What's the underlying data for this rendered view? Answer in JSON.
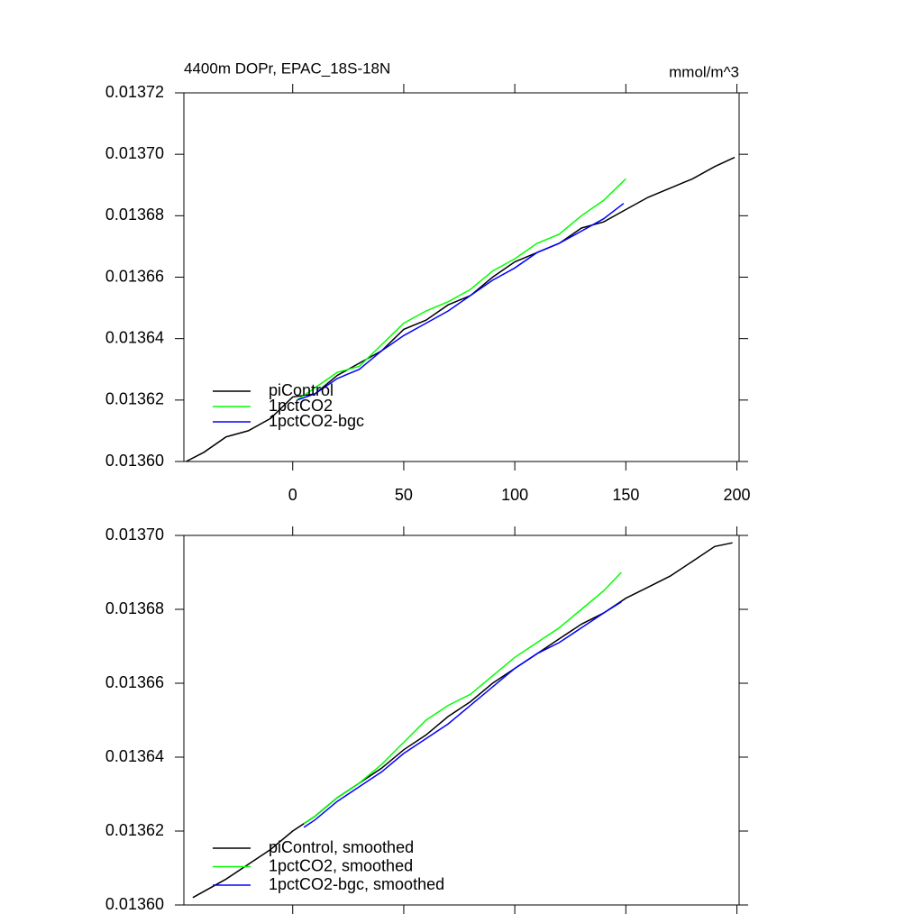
{
  "chart_data": [
    {
      "type": "line",
      "title": "4400m DOPr, EPAC_18S-18N",
      "unit_label": "mmol/m^3",
      "xlim": [
        -49,
        201
      ],
      "xticks": [
        0,
        50,
        100,
        150,
        200
      ],
      "xtick_labels": true,
      "ylim": [
        0.0136,
        0.01372
      ],
      "yticks": [
        {
          "value": 0.0136,
          "label": "0.01360"
        },
        0.01362,
        0.01364,
        0.01366,
        0.01368,
        {
          "value": 0.0137,
          "label": "0.01370"
        },
        0.01372
      ],
      "legend": "lower left",
      "series": [
        {
          "name": "piControl",
          "color": "#000000",
          "x": [
            -48,
            -40,
            -30,
            -20,
            -10,
            0,
            10,
            20,
            30,
            40,
            50,
            60,
            70,
            80,
            90,
            100,
            110,
            120,
            130,
            140,
            150,
            160,
            170,
            180,
            190,
            199
          ],
          "values": [
            0.0136,
            0.013603,
            0.013608,
            0.01361,
            0.013614,
            0.013621,
            0.013622,
            0.013628,
            0.013632,
            0.013636,
            0.013643,
            0.013646,
            0.013651,
            0.013654,
            0.01366,
            0.013665,
            0.013668,
            0.013671,
            0.013676,
            0.013678,
            0.013682,
            0.013686,
            0.013689,
            0.013692,
            0.013696,
            0.013699
          ]
        },
        {
          "name": "1pctCO2",
          "color": "#00ff00",
          "x": [
            2,
            10,
            20,
            30,
            40,
            50,
            60,
            70,
            80,
            90,
            100,
            110,
            120,
            130,
            140,
            150
          ],
          "values": [
            0.01362,
            0.013624,
            0.013629,
            0.013631,
            0.013638,
            0.013645,
            0.013649,
            0.013652,
            0.013656,
            0.013662,
            0.013666,
            0.013671,
            0.013674,
            0.01368,
            0.013685,
            0.013692
          ]
        },
        {
          "name": "1pctCO2-bgc",
          "color": "#0000ff",
          "x": [
            2,
            10,
            20,
            30,
            40,
            50,
            60,
            70,
            80,
            90,
            100,
            110,
            120,
            130,
            140,
            149
          ],
          "values": [
            0.01362,
            0.013622,
            0.013627,
            0.01363,
            0.013636,
            0.013641,
            0.013645,
            0.013649,
            0.013654,
            0.013659,
            0.013663,
            0.013668,
            0.013671,
            0.013675,
            0.013679,
            0.013684
          ]
        }
      ]
    },
    {
      "type": "line",
      "xlim": [
        -49,
        201
      ],
      "xticks": [
        0,
        50,
        100,
        150,
        200
      ],
      "xtick_labels": false,
      "ylim": [
        0.0136,
        0.0137
      ],
      "yticks": [
        {
          "value": 0.0136,
          "label": "0.01360"
        },
        0.01362,
        0.01364,
        0.01366,
        0.01368,
        {
          "value": 0.0137,
          "label": "0.01370"
        }
      ],
      "legend": "lower left",
      "series": [
        {
          "name": "piControl, smoothed",
          "color": "#000000",
          "x": [
            -45,
            -30,
            -20,
            -10,
            0,
            10,
            20,
            30,
            40,
            50,
            60,
            70,
            80,
            90,
            100,
            110,
            120,
            130,
            140,
            150,
            160,
            170,
            180,
            190,
            198
          ],
          "values": [
            0.013602,
            0.013607,
            0.013611,
            0.013615,
            0.01362,
            0.013624,
            0.013629,
            0.013633,
            0.013637,
            0.013642,
            0.013646,
            0.013651,
            0.013655,
            0.01366,
            0.013664,
            0.013668,
            0.013672,
            0.013676,
            0.013679,
            0.013683,
            0.013686,
            0.013689,
            0.013693,
            0.013697,
            0.013698
          ]
        },
        {
          "name": "1pctCO2, smoothed",
          "color": "#00ff00",
          "x": [
            5,
            10,
            20,
            30,
            40,
            50,
            60,
            70,
            80,
            90,
            100,
            110,
            120,
            130,
            140,
            148
          ],
          "values": [
            0.013622,
            0.013624,
            0.013629,
            0.013633,
            0.013638,
            0.013644,
            0.01365,
            0.013654,
            0.013657,
            0.013662,
            0.013667,
            0.013671,
            0.013675,
            0.01368,
            0.013685,
            0.01369
          ]
        },
        {
          "name": "1pctCO2-bgc, smoothed",
          "color": "#0000ff",
          "x": [
            5,
            10,
            20,
            30,
            40,
            50,
            60,
            70,
            80,
            90,
            100,
            110,
            120,
            130,
            140,
            148
          ],
          "values": [
            0.013621,
            0.013623,
            0.013628,
            0.013632,
            0.013636,
            0.013641,
            0.013645,
            0.013649,
            0.013654,
            0.013659,
            0.013664,
            0.013668,
            0.013671,
            0.013675,
            0.013679,
            0.013682
          ]
        }
      ]
    }
  ]
}
